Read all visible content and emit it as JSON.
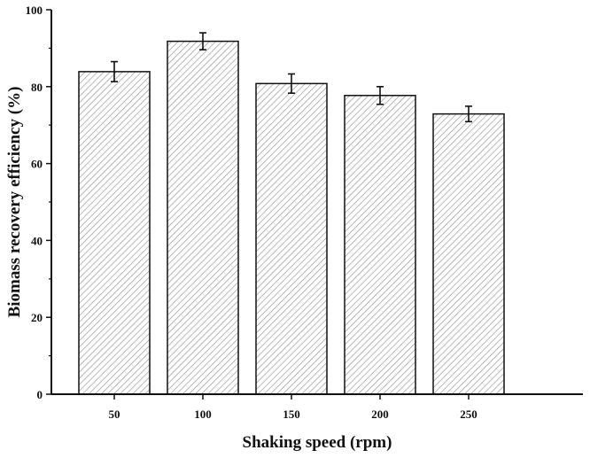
{
  "chart_data": {
    "type": "bar",
    "title": "",
    "xlabel": "Shaking speed (rpm)",
    "ylabel": "Biomass recovery efficiency (%)",
    "categories": [
      "50",
      "100",
      "150",
      "200",
      "250"
    ],
    "values": [
      83.9,
      91.8,
      80.8,
      77.7,
      72.9
    ],
    "errors": [
      2.6,
      2.2,
      2.5,
      2.3,
      2.0
    ],
    "ylim": [
      0,
      100
    ],
    "yticks": [
      "0",
      "20",
      "40",
      "60",
      "80",
      "100"
    ],
    "grid": false,
    "bar_pattern": "diagonal-hatch",
    "colors": {
      "bar_fill": "#ffffff",
      "hatch": "#888888",
      "edge": "#111111"
    }
  }
}
